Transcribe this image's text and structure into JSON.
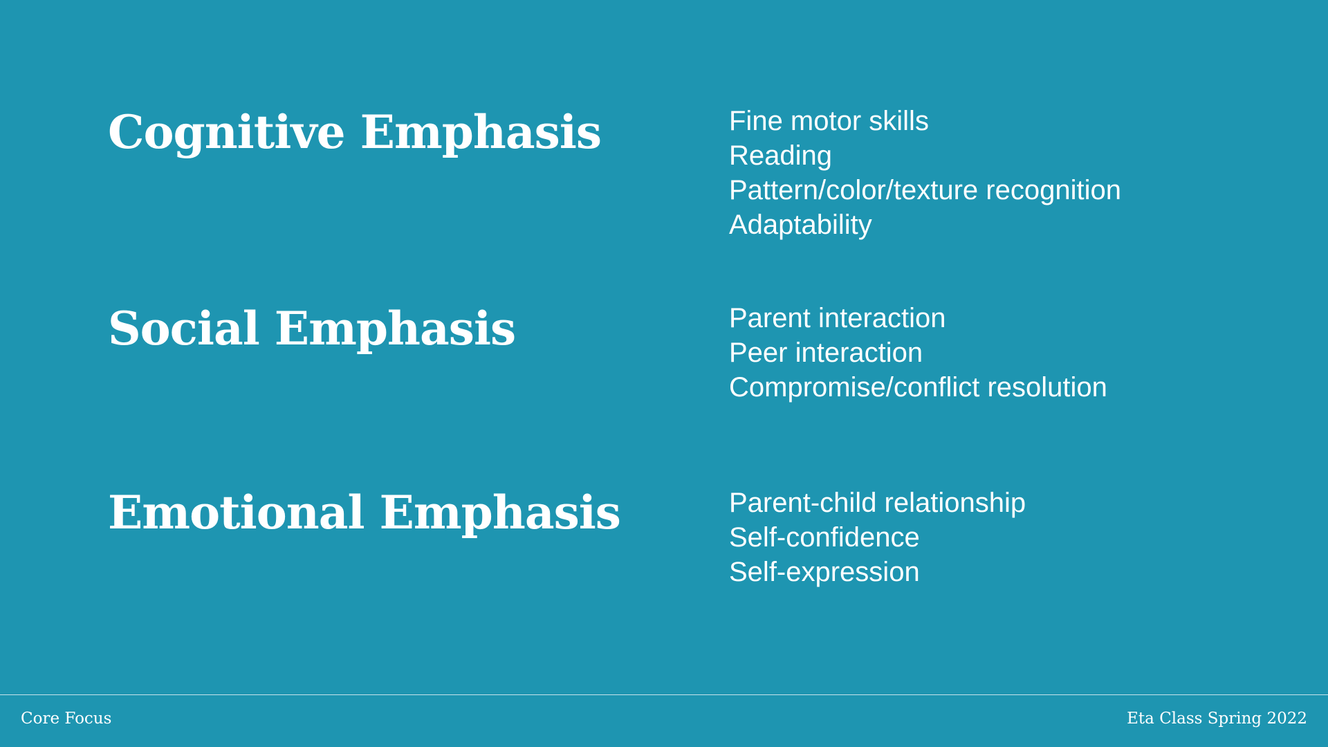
{
  "slide": {
    "background_color": "#1e95b1",
    "text_color": "#ffffff",
    "sections": [
      {
        "heading": "Cognitive Emphasis",
        "items": [
          "Fine motor skills",
          "Reading",
          "Pattern/color/texture recognition",
          "Adaptability"
        ]
      },
      {
        "heading": "Social Emphasis",
        "items": [
          "Parent interaction",
          "Peer interaction",
          "Compromise/conflict resolution"
        ]
      },
      {
        "heading": "Emotional Emphasis",
        "items": [
          "Parent-child relationship",
          "Self-confidence",
          "Self-expression"
        ]
      }
    ]
  },
  "footer": {
    "left_text": "Core Focus",
    "right_text": "Eta Class Spring 2022"
  }
}
